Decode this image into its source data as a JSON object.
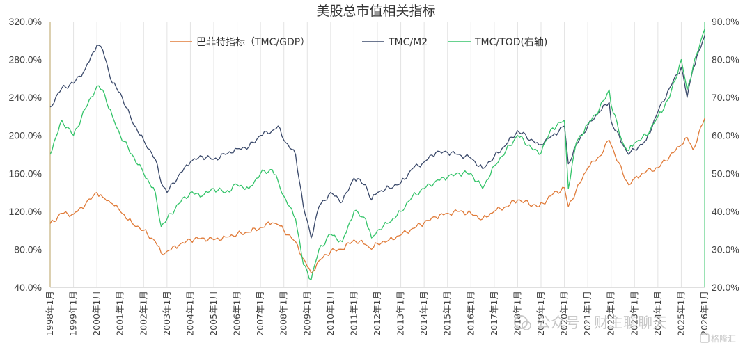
{
  "chart_data": {
    "type": "line",
    "title": "美股总市值相关指标",
    "xlabel": "",
    "ylabel": "",
    "x_start": "1998-01",
    "x_end": "2026-01",
    "x_tick_labels": [
      "1998年1月",
      "1999年1月",
      "2000年1月",
      "2001年1月",
      "2002年1月",
      "2003年1月",
      "2004年1月",
      "2005年1月",
      "2006年1月",
      "2007年1月",
      "2008年1月",
      "2009年1月",
      "2010年1月",
      "2011年1月",
      "2012年1月",
      "2013年1月",
      "2014年1月",
      "2015年1月",
      "2016年1月",
      "2017年1月",
      "2018年1月",
      "2019年1月",
      "2020年1月",
      "2021年1月",
      "2022年1月",
      "2023年1月",
      "2024年1月",
      "2025年1月",
      "2026年1月"
    ],
    "y_left": {
      "ticks": [
        "40.0%",
        "80.0%",
        "120.0%",
        "160.0%",
        "200.0%",
        "240.0%",
        "280.0%",
        "320.0%"
      ],
      "range": [
        40,
        320
      ],
      "unit": "%"
    },
    "y_right": {
      "ticks": [
        "20.0%",
        "30.0%",
        "40.0%",
        "50.0%",
        "60.0%",
        "70.0%",
        "80.0%",
        "90.0%"
      ],
      "range": [
        20,
        90
      ],
      "unit": "%"
    },
    "grid": "vertical",
    "legend_position": "top",
    "x": [
      "1998-01",
      "1998-07",
      "1999-01",
      "1999-07",
      "2000-01",
      "2000-04",
      "2000-09",
      "2001-01",
      "2001-07",
      "2002-01",
      "2002-07",
      "2002-10",
      "2003-01",
      "2003-07",
      "2004-01",
      "2004-07",
      "2005-01",
      "2005-07",
      "2006-01",
      "2006-07",
      "2007-01",
      "2007-07",
      "2007-10",
      "2008-01",
      "2008-07",
      "2008-11",
      "2009-03",
      "2009-07",
      "2010-01",
      "2010-07",
      "2011-01",
      "2011-07",
      "2011-10",
      "2012-01",
      "2012-07",
      "2013-01",
      "2013-07",
      "2014-01",
      "2014-07",
      "2015-01",
      "2015-07",
      "2016-01",
      "2016-07",
      "2017-01",
      "2017-07",
      "2018-01",
      "2018-12",
      "2019-07",
      "2020-01",
      "2020-03",
      "2020-07",
      "2021-01",
      "2021-07",
      "2021-12",
      "2022-01",
      "2022-07",
      "2022-10",
      "2023-01",
      "2023-07",
      "2024-01",
      "2024-07",
      "2025-01",
      "2025-04",
      "2025-07",
      "2026-01"
    ],
    "series": [
      {
        "name": "巴菲特指标（TMC/GDP）",
        "axis": "left",
        "color": "#e07b39",
        "values": [
          107,
          118,
          117,
          127,
          140,
          135,
          128,
          120,
          108,
          100,
          88,
          76,
          78,
          84,
          90,
          92,
          90,
          93,
          96,
          98,
          103,
          108,
          106,
          100,
          88,
          70,
          55,
          68,
          78,
          80,
          90,
          85,
          80,
          86,
          90,
          95,
          102,
          108,
          114,
          118,
          120,
          118,
          112,
          120,
          125,
          132,
          125,
          138,
          145,
          125,
          142,
          166,
          178,
          195,
          190,
          160,
          148,
          155,
          162,
          166,
          178,
          190,
          198,
          185,
          218
        ]
      },
      {
        "name": "TMC/M2",
        "axis": "left",
        "color": "#3b4a6b",
        "values": [
          230,
          250,
          255,
          270,
          295,
          290,
          255,
          245,
          215,
          195,
          175,
          150,
          140,
          158,
          172,
          178,
          175,
          180,
          186,
          188,
          200,
          205,
          210,
          195,
          180,
          125,
          92,
          125,
          140,
          130,
          155,
          148,
          132,
          140,
          145,
          150,
          165,
          172,
          182,
          182,
          180,
          176,
          165,
          178,
          190,
          205,
          190,
          200,
          210,
          170,
          190,
          210,
          225,
          235,
          215,
          190,
          180,
          185,
          195,
          225,
          250,
          272,
          240,
          270,
          305
        ]
      },
      {
        "name": "TMC/TOD(右轴)",
        "axis": "right",
        "color": "#35c46a",
        "values": [
          55,
          64,
          60,
          67,
          73,
          72,
          65,
          60,
          55,
          50,
          45,
          36,
          38,
          42,
          45,
          44,
          46,
          45,
          47,
          46,
          50,
          51,
          48,
          44,
          38,
          26,
          22,
          30,
          34,
          32,
          40,
          38,
          33,
          35,
          37,
          40,
          44,
          46,
          48,
          49,
          50,
          50,
          46,
          52,
          56,
          60,
          55,
          62,
          64,
          46,
          58,
          63,
          67,
          72,
          68,
          58,
          56,
          58,
          60,
          65,
          70,
          80,
          72,
          78,
          88
        ]
      }
    ]
  },
  "watermark": {
    "line1": "公众号 · 财主聊聊天",
    "line2": "格隆汇"
  }
}
